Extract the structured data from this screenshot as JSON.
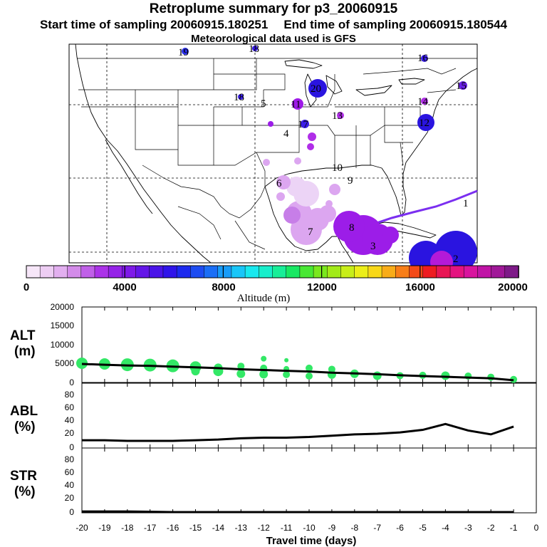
{
  "header": {
    "title": "Retroplume summary for p3_20060915",
    "start_label": "Start time of sampling 20060915.180251",
    "end_label": "End time of sampling 20060915.180544",
    "met_label": "Meteorological data used is GFS"
  },
  "colors": {
    "plume_purple": "#9c1de8",
    "plume_light": "#dca6f0",
    "plume_blue": "#2a14e0",
    "trajectory": "#7b2ff0",
    "altitude_dots": "#33e866"
  },
  "chart_data": [
    {
      "type": "map-scatter",
      "title": "Retroplume summary for p3_20060915",
      "region": "North America (US, Mexico, Gulf of Mexico)",
      "plume_labels": [
        {
          "day": "19",
          "color": "#2a2fe8"
        },
        {
          "day": "18",
          "color": "#3a1ee8"
        },
        {
          "day": "18",
          "color": "#6a20e8"
        },
        {
          "day": "17",
          "color": "#3a1ee8"
        },
        {
          "day": "16",
          "color": "#2a14e0"
        },
        {
          "day": "15",
          "color": "#8a1ee8"
        },
        {
          "day": "14",
          "color": "#b02ee8"
        },
        {
          "day": "13",
          "color": "#b02ee8"
        },
        {
          "day": "12",
          "color": "#9e2ae8"
        },
        {
          "day": "11",
          "color": "#8a1ee8"
        },
        {
          "day": "20",
          "color": "#2a14e0"
        },
        {
          "day": "5",
          "color": "#dca6f0"
        },
        {
          "day": "10",
          "color": "#9c1de8"
        },
        {
          "day": "9",
          "color": "#9c1de8"
        },
        {
          "day": "8",
          "color": "#9c1de8"
        },
        {
          "day": "7",
          "color": "#dca6f0"
        },
        {
          "day": "6",
          "color": "#dca6f0"
        },
        {
          "day": "4",
          "color": "#dca6f0"
        },
        {
          "day": "3",
          "color": "#9c1de8"
        },
        {
          "day": "2",
          "color": "#2a14e0"
        },
        {
          "day": "1",
          "color": "#9c1de8"
        }
      ],
      "colorbar": {
        "label": "Altitude (m)",
        "min": 0,
        "max": 20000,
        "tick_labels": [
          "0",
          "4000",
          "8000",
          "12000",
          "16000",
          "20000"
        ],
        "colors": [
          "#f6e6f8",
          "#edcdf3",
          "#e2afef",
          "#d38be9",
          "#c060e8",
          "#ab33e8",
          "#9522e8",
          "#7e1ae8",
          "#6416e8",
          "#4a14e8",
          "#2f14ea",
          "#1d2aef",
          "#1c4cf2",
          "#1a6ef6",
          "#189cf8",
          "#18c6f8",
          "#18e8ee",
          "#18eecb",
          "#18ee98",
          "#18e863",
          "#48e834",
          "#7ae81e",
          "#a2ea18",
          "#c8ee18",
          "#ecee18",
          "#f8d818",
          "#f8ac18",
          "#f87e18",
          "#f44a18",
          "#ee1c20",
          "#e81654",
          "#e41480",
          "#d8149e",
          "#c014a6",
          "#a01898",
          "#7e1a88"
        ]
      }
    },
    {
      "type": "scatter+line",
      "ylabel": "ALT (m)",
      "ylim": [
        0,
        20000
      ],
      "y_ticks": [
        "20000",
        "15000",
        "10000",
        "5000",
        "0"
      ],
      "x": [
        -20,
        -19,
        -18,
        -17,
        -16,
        -15,
        -14,
        -13,
        -12,
        -11,
        -10,
        -9,
        -8,
        -7,
        -6,
        -5,
        -4,
        -3,
        -2,
        -1
      ],
      "line_values": [
        4900,
        4700,
        4500,
        4400,
        4200,
        4000,
        3800,
        3500,
        3300,
        3100,
        2900,
        2600,
        2400,
        2200,
        1900,
        1700,
        1500,
        1300,
        1100,
        600
      ],
      "points": [
        {
          "x": -20,
          "y": 5100,
          "size": 8
        },
        {
          "x": -19,
          "y": 4900,
          "size": 8
        },
        {
          "x": -18,
          "y": 4700,
          "size": 9
        },
        {
          "x": -17,
          "y": 4600,
          "size": 9
        },
        {
          "x": -16,
          "y": 4400,
          "size": 9
        },
        {
          "x": -15,
          "y": 4100,
          "size": 8
        },
        {
          "x": -15,
          "y": 3000,
          "size": 6
        },
        {
          "x": -14,
          "y": 3900,
          "size": 6
        },
        {
          "x": -14,
          "y": 3000,
          "size": 7
        },
        {
          "x": -13,
          "y": 4300,
          "size": 5
        },
        {
          "x": -13,
          "y": 2300,
          "size": 6
        },
        {
          "x": -12,
          "y": 6300,
          "size": 4
        },
        {
          "x": -12,
          "y": 3800,
          "size": 5
        },
        {
          "x": -12,
          "y": 2200,
          "size": 6
        },
        {
          "x": -11,
          "y": 5900,
          "size": 3
        },
        {
          "x": -11,
          "y": 3600,
          "size": 4
        },
        {
          "x": -11,
          "y": 2100,
          "size": 5
        },
        {
          "x": -10,
          "y": 3800,
          "size": 5
        },
        {
          "x": -10,
          "y": 1700,
          "size": 5
        },
        {
          "x": -9,
          "y": 3500,
          "size": 5
        },
        {
          "x": -9,
          "y": 2100,
          "size": 6
        },
        {
          "x": -8,
          "y": 2300,
          "size": 6
        },
        {
          "x": -7,
          "y": 1800,
          "size": 6
        },
        {
          "x": -6,
          "y": 1800,
          "size": 5
        },
        {
          "x": -5,
          "y": 1900,
          "size": 5
        },
        {
          "x": -4,
          "y": 1800,
          "size": 6
        },
        {
          "x": -3,
          "y": 1700,
          "size": 5
        },
        {
          "x": -2,
          "y": 1400,
          "size": 5
        },
        {
          "x": -1,
          "y": 800,
          "size": 5
        }
      ]
    },
    {
      "type": "line",
      "ylabel": "ABL (%)",
      "ylim": [
        0,
        100
      ],
      "y_ticks": [
        "80",
        "60",
        "40",
        "20",
        "0"
      ],
      "x": [
        -20,
        -19,
        -18,
        -17,
        -16,
        -15,
        -14,
        -13,
        -12,
        -11,
        -10,
        -9,
        -8,
        -7,
        -6,
        -5,
        -4,
        -3,
        -2,
        -1
      ],
      "values": [
        12,
        12,
        11,
        11,
        11,
        12,
        13,
        15,
        16,
        16,
        17,
        19,
        21,
        22,
        24,
        28,
        37,
        27,
        21,
        33
      ]
    },
    {
      "type": "line",
      "ylabel": "STR (%)",
      "ylim": [
        0,
        100
      ],
      "y_ticks": [
        "80",
        "60",
        "40",
        "20",
        "0"
      ],
      "x": [
        -20,
        -19,
        -18,
        -17,
        -16,
        -15,
        -14,
        -13,
        -12,
        -11,
        -10,
        -9,
        -8,
        -7,
        -6,
        -5,
        -4,
        -3,
        -2,
        -1
      ],
      "values": [
        1,
        1,
        1,
        0.5,
        0,
        0,
        0,
        0,
        0,
        0,
        0,
        0,
        0,
        0,
        0,
        0,
        0,
        0,
        0,
        0
      ]
    },
    {
      "type": "axis",
      "xlabel": "Travel time (days)",
      "x_ticks": [
        "-20",
        "-19",
        "-18",
        "-17",
        "-16",
        "-15",
        "-14",
        "-13",
        "-12",
        "-11",
        "-10",
        "-9",
        "-8",
        "-7",
        "-6",
        "-5",
        "-4",
        "-3",
        "-2",
        "-1",
        "0"
      ]
    }
  ]
}
